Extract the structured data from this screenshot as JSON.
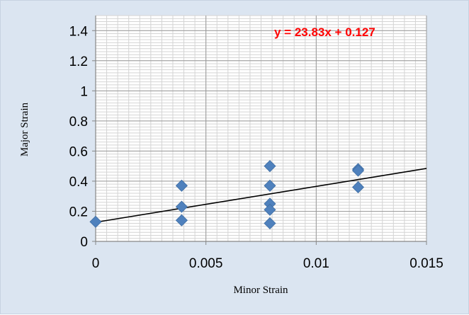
{
  "chart_data": {
    "type": "scatter",
    "xlabel": "Minor Strain",
    "ylabel": "Major Strain",
    "xlim": [
      0,
      0.015
    ],
    "ylim": [
      0,
      1.5
    ],
    "x_ticks": [
      "0",
      "0.005",
      "0.01",
      "0.015"
    ],
    "y_ticks": [
      "0",
      "0.2",
      "0.4",
      "0.6",
      "0.8",
      "1",
      "1.2",
      "1.4"
    ],
    "grid": true,
    "legend": "none",
    "series": [
      {
        "marker": "diamond",
        "color": "#4f81bd",
        "points": [
          {
            "x": 0,
            "y": 0.13
          },
          {
            "x": 0.0039,
            "y": 0.37
          },
          {
            "x": 0.0039,
            "y": 0.23
          },
          {
            "x": 0.0039,
            "y": 0.14
          },
          {
            "x": 0.0079,
            "y": 0.5
          },
          {
            "x": 0.0079,
            "y": 0.37
          },
          {
            "x": 0.0079,
            "y": 0.25
          },
          {
            "x": 0.0079,
            "y": 0.21
          },
          {
            "x": 0.0079,
            "y": 0.12
          },
          {
            "x": 0.0119,
            "y": 0.48
          },
          {
            "x": 0.0119,
            "y": 0.47
          },
          {
            "x": 0.0119,
            "y": 0.36
          }
        ]
      }
    ],
    "trendline": {
      "slope": 23.83,
      "intercept": 0.127,
      "label": "y = 23.83x + 0.127",
      "label_color": "#ff0000",
      "line_color": "#000000"
    }
  }
}
